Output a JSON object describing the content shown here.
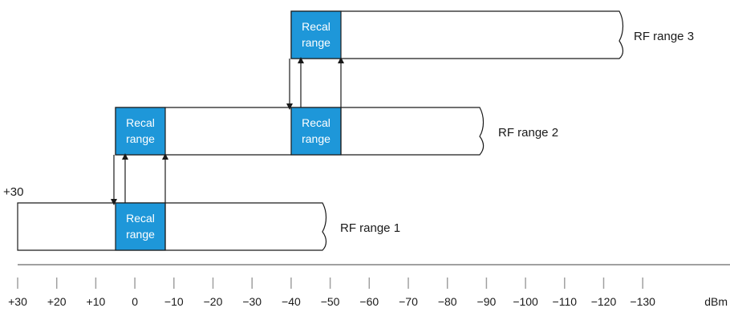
{
  "colors": {
    "recal_fill": "#1e97d9",
    "bar_stroke": "#1a1a1a",
    "axis": "#a0a0a0",
    "text": "#1a1a1a"
  },
  "ranges": [
    {
      "label": "RF range 1",
      "recal": [
        {
          "line1": "Recal",
          "line2": "range"
        }
      ]
    },
    {
      "label": "RF range 2",
      "recal": [
        {
          "line1": "Recal",
          "line2": "range"
        },
        {
          "line1": "Recal",
          "line2": "range"
        }
      ]
    },
    {
      "label": "RF range 3",
      "recal": [
        {
          "line1": "Recal",
          "line2": "range"
        }
      ]
    }
  ],
  "top_level_label": "+30",
  "axis": {
    "unit": "dBm",
    "ticks": [
      "+30",
      "+20",
      "+10",
      "0",
      "−10",
      "−20",
      "−30",
      "−40",
      "−50",
      "−60",
      "−70",
      "−80",
      "−90",
      "−100",
      "−110",
      "−120",
      "−130"
    ]
  }
}
